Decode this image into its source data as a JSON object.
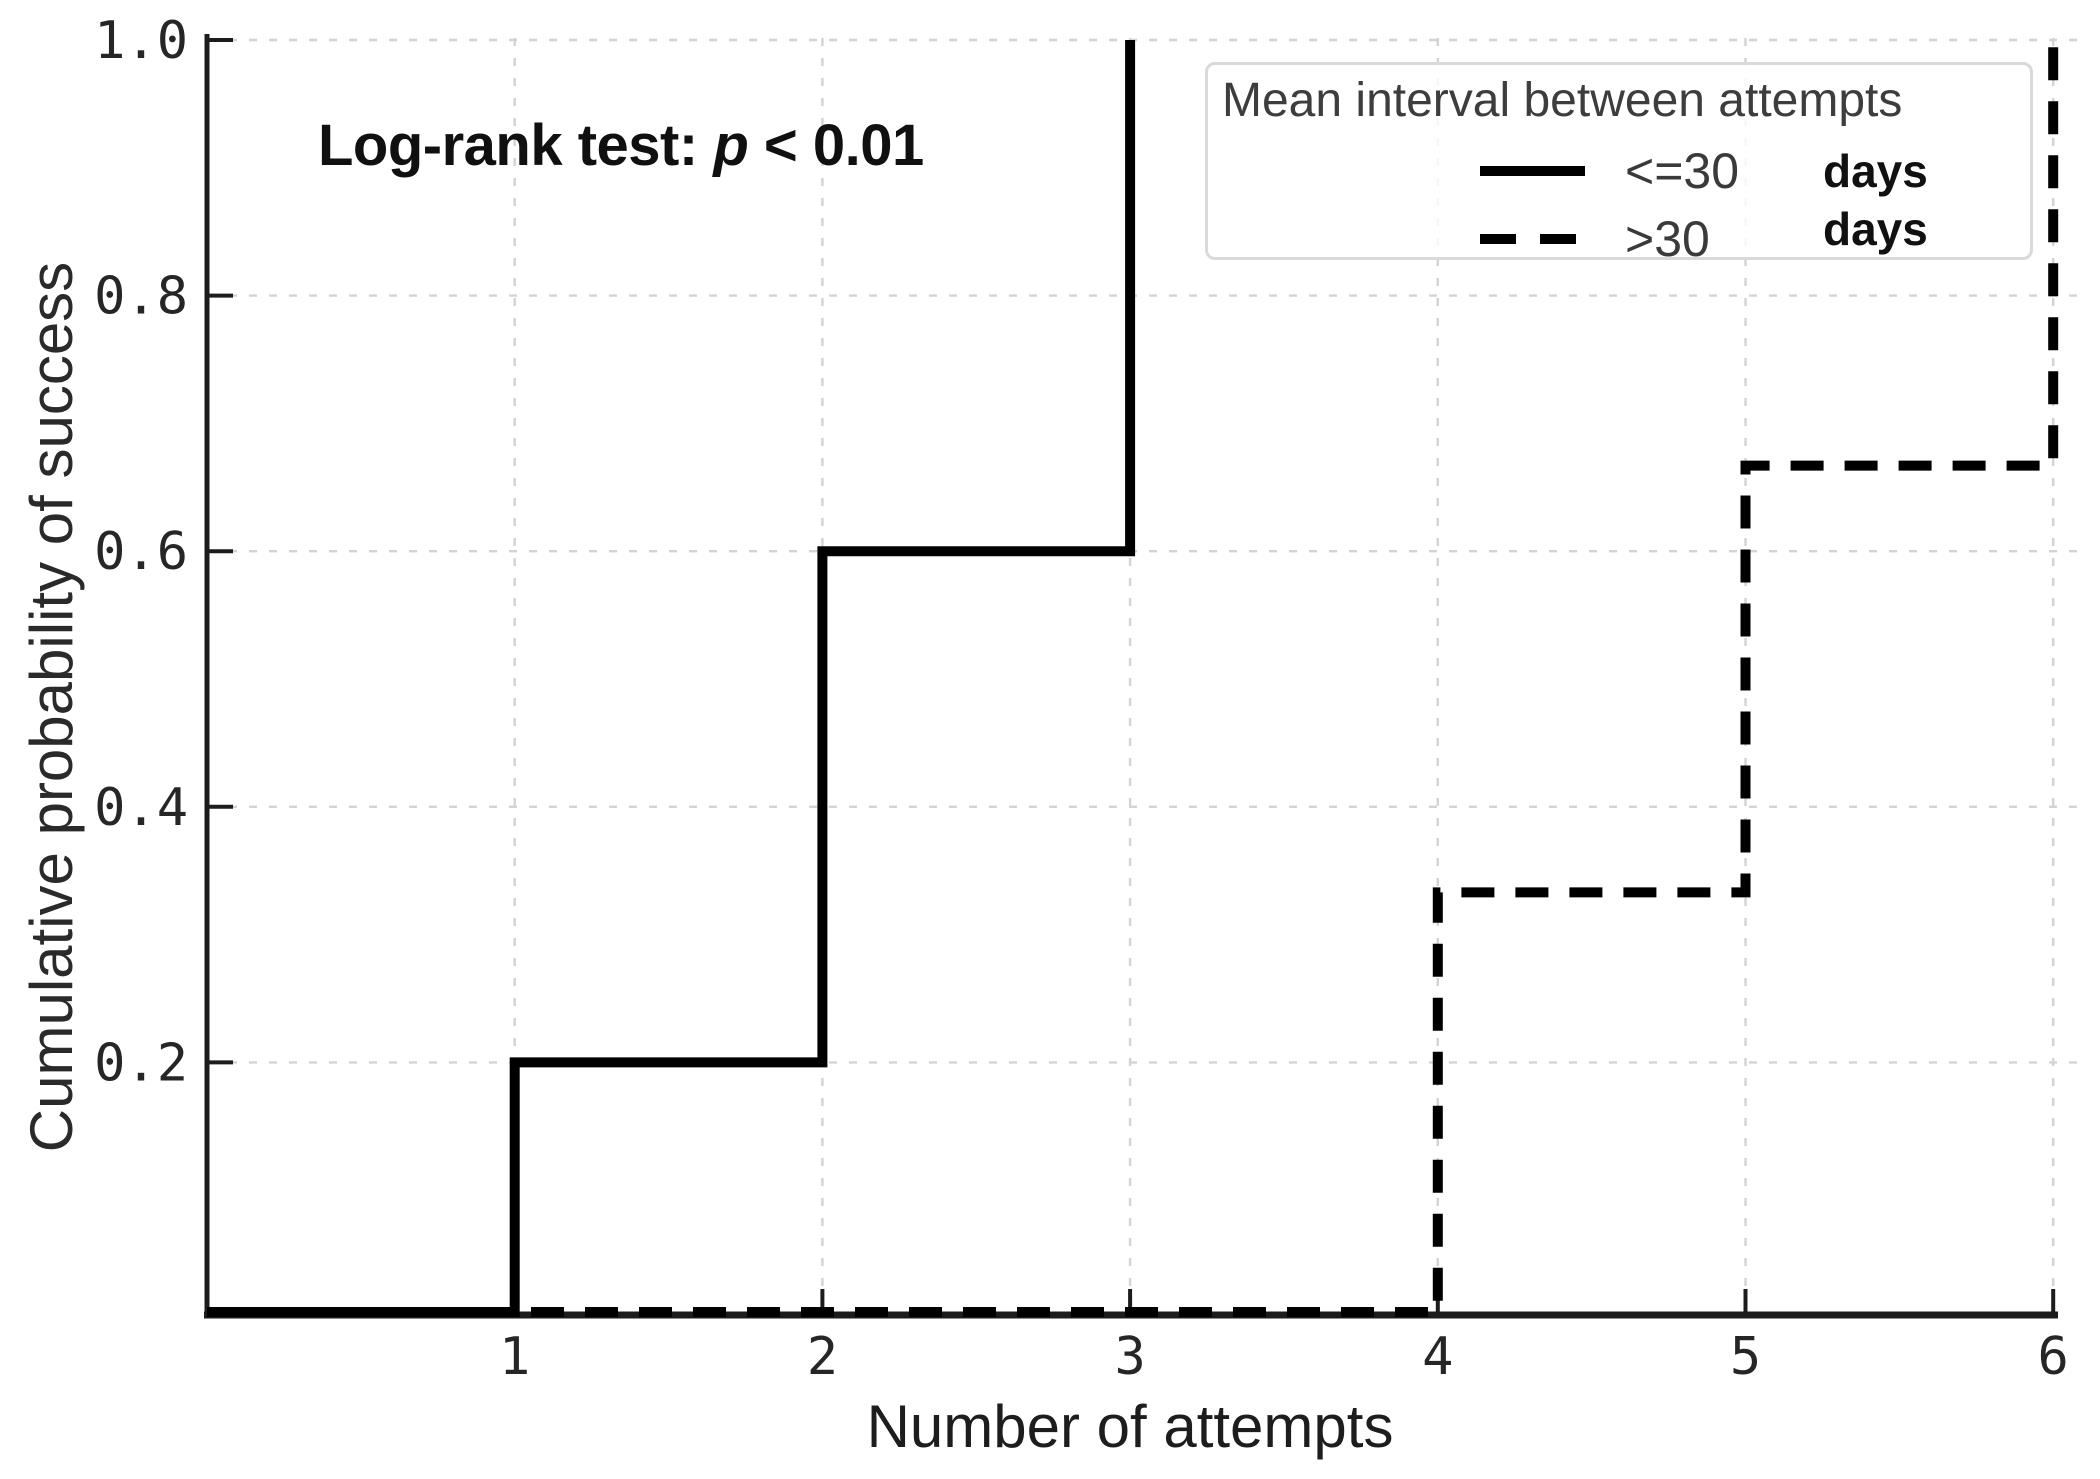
{
  "chart_data": {
    "type": "line",
    "subtype": "step-survival",
    "xlabel": "Number of attempts",
    "ylabel": "Cumulative probability of success",
    "annotation": {
      "prefix": "Log-rank test: ",
      "stat": "p",
      "rest": " < 0.01"
    },
    "xlim": [
      0,
      6.1
    ],
    "ylim": [
      0,
      1.0
    ],
    "grid": true,
    "xticks": [
      1,
      2,
      3,
      4,
      5,
      6
    ],
    "xtick_labels": [
      "1",
      "2",
      "3",
      "4",
      "5",
      "6"
    ],
    "yticks": [
      0.2,
      0.4,
      0.6,
      0.8,
      1.0
    ],
    "ytick_labels": [
      "0.2",
      "0.4",
      "0.6",
      "0.8",
      "1.0"
    ],
    "legend": {
      "title": "Mean interval between attempts",
      "position": "upper-right",
      "entries": [
        {
          "label": "<=30",
          "unit": "days",
          "style": "solid"
        },
        {
          "label": ">30",
          "unit": "days",
          "style": "dashed"
        }
      ]
    },
    "series": [
      {
        "name": "<=30 days",
        "style": "solid",
        "color": "#000000",
        "points": [
          [
            0,
            0
          ],
          [
            1,
            0
          ],
          [
            1,
            0.2
          ],
          [
            2,
            0.2
          ],
          [
            2,
            0.6
          ],
          [
            3,
            0.6
          ],
          [
            3,
            1.0
          ]
        ]
      },
      {
        "name": ">30 days",
        "style": "dashed",
        "color": "#000000",
        "points": [
          [
            0,
            0
          ],
          [
            4,
            0
          ],
          [
            4,
            0.333
          ],
          [
            5,
            0.333
          ],
          [
            5,
            0.667
          ],
          [
            6,
            0.667
          ],
          [
            6,
            1.0
          ]
        ]
      }
    ]
  },
  "colors": {
    "line": "#000000",
    "grid": "#d3d3d3",
    "spine": "#1c1c1c",
    "tick_text": "#262626",
    "legend_border": "#d9d9d9",
    "legend_title_text": "#3d3d3d"
  }
}
